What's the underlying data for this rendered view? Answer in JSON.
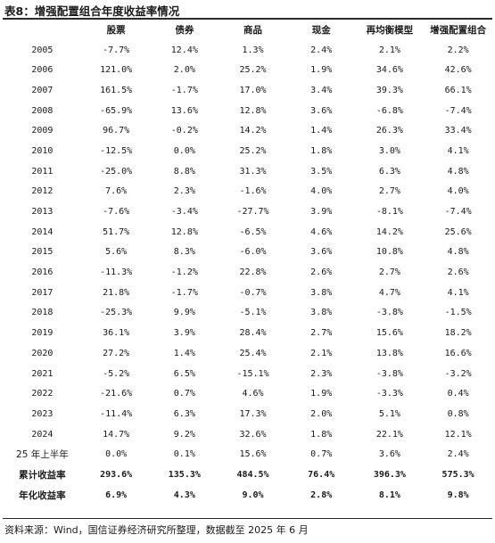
{
  "title": "表8：增强配置组合年度收益率情况",
  "headers": [
    "",
    "股票",
    "债券",
    "商品",
    "现金",
    "再均衡模型",
    "增强配置组合"
  ],
  "rows": [
    {
      "year": "2005",
      "values": [
        "-7.7%",
        "12.4%",
        "1.3%",
        "2.4%",
        "2.1%",
        "2.2%"
      ]
    },
    {
      "year": "2006",
      "values": [
        "121.0%",
        "2.0%",
        "25.2%",
        "1.9%",
        "34.6%",
        "42.6%"
      ]
    },
    {
      "year": "2007",
      "values": [
        "161.5%",
        "-1.7%",
        "17.0%",
        "3.4%",
        "39.3%",
        "66.1%"
      ]
    },
    {
      "year": "2008",
      "values": [
        "-65.9%",
        "13.6%",
        "12.8%",
        "3.6%",
        "-6.8%",
        "-7.4%"
      ]
    },
    {
      "year": "2009",
      "values": [
        "96.7%",
        "-0.2%",
        "14.2%",
        "1.4%",
        "26.3%",
        "33.4%"
      ]
    },
    {
      "year": "2010",
      "values": [
        "-12.5%",
        "0.0%",
        "25.2%",
        "1.8%",
        "3.0%",
        "4.1%"
      ]
    },
    {
      "year": "2011",
      "values": [
        "-25.0%",
        "8.8%",
        "31.3%",
        "3.5%",
        "6.3%",
        "4.8%"
      ]
    },
    {
      "year": "2012",
      "values": [
        "7.6%",
        "2.3%",
        "-1.6%",
        "4.0%",
        "2.7%",
        "4.0%"
      ]
    },
    {
      "year": "2013",
      "values": [
        "-7.6%",
        "-3.4%",
        "-27.7%",
        "3.9%",
        "-8.1%",
        "-7.4%"
      ]
    },
    {
      "year": "2014",
      "values": [
        "51.7%",
        "12.8%",
        "-6.5%",
        "4.6%",
        "14.2%",
        "25.6%"
      ]
    },
    {
      "year": "2015",
      "values": [
        "5.6%",
        "8.3%",
        "-6.0%",
        "3.6%",
        "10.8%",
        "4.8%"
      ]
    },
    {
      "year": "2016",
      "values": [
        "-11.3%",
        "-1.2%",
        "22.8%",
        "2.6%",
        "2.7%",
        "2.6%"
      ]
    },
    {
      "year": "2017",
      "values": [
        "21.8%",
        "-1.7%",
        "-0.7%",
        "3.8%",
        "4.7%",
        "4.1%"
      ]
    },
    {
      "year": "2018",
      "values": [
        "-25.3%",
        "9.9%",
        "-5.1%",
        "3.8%",
        "-3.8%",
        "-1.5%"
      ]
    },
    {
      "year": "2019",
      "values": [
        "36.1%",
        "3.9%",
        "28.4%",
        "2.7%",
        "15.6%",
        "18.2%"
      ]
    },
    {
      "year": "2020",
      "values": [
        "27.2%",
        "1.4%",
        "25.4%",
        "2.1%",
        "13.8%",
        "16.6%"
      ]
    },
    {
      "year": "2021",
      "values": [
        "-5.2%",
        "6.5%",
        "-15.1%",
        "2.3%",
        "-3.8%",
        "-3.2%"
      ]
    },
    {
      "year": "2022",
      "values": [
        "-21.6%",
        "0.7%",
        "4.6%",
        "1.9%",
        "-3.3%",
        "0.4%"
      ]
    },
    {
      "year": "2023",
      "values": [
        "-11.4%",
        "6.3%",
        "17.3%",
        "2.0%",
        "5.1%",
        "0.8%"
      ]
    },
    {
      "year": "2024",
      "values": [
        "14.7%",
        "9.2%",
        "32.6%",
        "1.8%",
        "22.1%",
        "12.1%"
      ]
    },
    {
      "year": "25 年上半年",
      "values": [
        "0.0%",
        "0.1%",
        "15.6%",
        "0.7%",
        "3.6%",
        "2.4%"
      ]
    }
  ],
  "summary": [
    {
      "label": "累计收益率",
      "values": [
        "293.6%",
        "135.3%",
        "484.5%",
        "76.4%",
        "396.3%",
        "575.3%"
      ]
    },
    {
      "label": "年化收益率",
      "values": [
        "6.9%",
        "4.3%",
        "9.0%",
        "2.8%",
        "8.1%",
        "9.8%"
      ]
    }
  ],
  "source": "资料来源：Wind，国信证券经济研究所整理，数据截至 2025 年 6 月"
}
